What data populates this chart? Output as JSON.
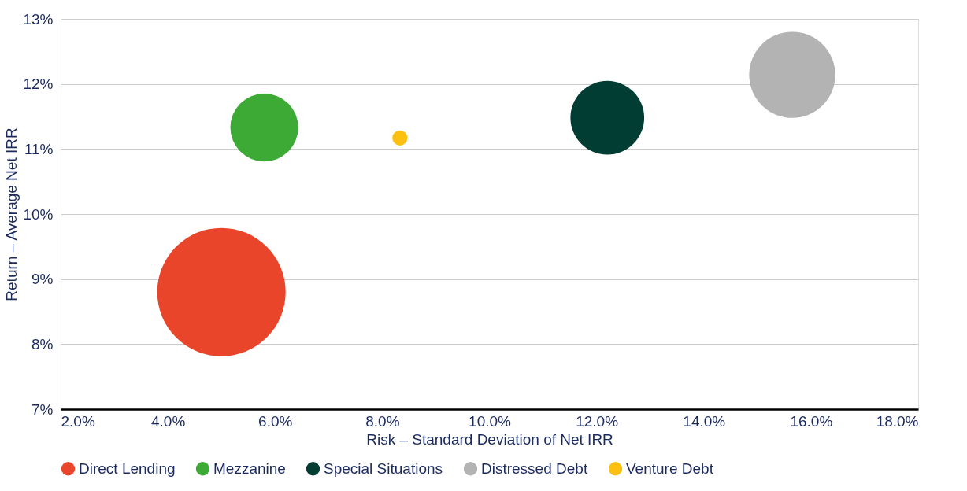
{
  "chart_data": {
    "type": "bubble",
    "xlabel": "Risk – Standard Deviation of Net IRR",
    "ylabel": "Return – Average Net IRR",
    "series": [
      {
        "name": "Direct Lending",
        "color": "#e8452a",
        "x": [
          5.0
        ],
        "values": [
          8.8
        ],
        "sizes": [
          1
        ]
      },
      {
        "name": "Mezzanine",
        "color": "#3daa35",
        "x": [
          5.8
        ],
        "values": [
          11.33
        ],
        "sizes": [
          0.28
        ]
      },
      {
        "name": "Special Situations",
        "color": "#013d32",
        "x": [
          12.2
        ],
        "values": [
          11.48
        ],
        "sizes": [
          0.33
        ]
      },
      {
        "name": "Distressed Debt",
        "color": "#b3b3b3",
        "x": [
          15.65
        ],
        "values": [
          12.14
        ],
        "sizes": [
          0.45
        ]
      },
      {
        "name": "Venture Debt",
        "color": "#fcc010",
        "x": [
          8.33
        ],
        "values": [
          11.17
        ],
        "sizes": [
          0.014
        ]
      }
    ],
    "xlim": [
      2,
      18
    ],
    "xticks": [
      {
        "value": 2,
        "label": "2.0%"
      },
      {
        "value": 4,
        "label": "4.0%"
      },
      {
        "value": 6,
        "label": "6.0%"
      },
      {
        "value": 8,
        "label": "8.0%"
      },
      {
        "value": 10,
        "label": "10.0%"
      },
      {
        "value": 12,
        "label": "12.0%"
      },
      {
        "value": 14,
        "label": "14.0%"
      },
      {
        "value": 16,
        "label": "16.0%"
      },
      {
        "value": 18,
        "label": "18.0%"
      }
    ],
    "ylim": [
      7,
      13
    ],
    "yticks": [
      {
        "value": 7,
        "label": "7%"
      },
      {
        "value": 8,
        "label": "8%"
      },
      {
        "value": 9,
        "label": "9%"
      },
      {
        "value": 10,
        "label": "10%"
      },
      {
        "value": 11,
        "label": "11%"
      },
      {
        "value": 12,
        "label": "12%"
      },
      {
        "value": 13,
        "label": "13%"
      }
    ],
    "grid": "y",
    "legend": "bottom",
    "marker": "circle"
  }
}
